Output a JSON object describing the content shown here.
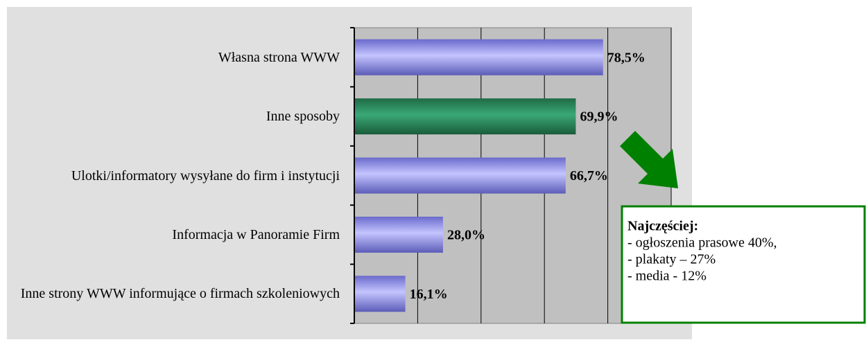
{
  "chart_data": {
    "type": "barh",
    "categories": [
      "Własna strona WWW",
      "Inne sposoby",
      "Ulotki/informatory wysyłane do firm i instytucji",
      "Informacja w Panoramie Firm",
      "Inne strony WWW informujące o firmach szkoleniowych"
    ],
    "values": [
      78.5,
      69.9,
      66.7,
      28.0,
      16.1
    ],
    "value_labels": [
      "78,5%",
      "69,9%",
      "66,7%",
      "28,0%",
      "16,1%"
    ],
    "colors": [
      "#9999ff",
      "#339966",
      "#9999ff",
      "#9999ff",
      "#9999ff"
    ],
    "xlim": [
      0,
      100
    ],
    "xticks": [
      0,
      20,
      40,
      60,
      80,
      100
    ],
    "grid": true,
    "annotation": {
      "title": "Najczęściej:",
      "lines": [
        "- ogłoszenia prasowe 40%,",
        "- plakaty – 27%",
        "- media - 12%"
      ]
    }
  }
}
